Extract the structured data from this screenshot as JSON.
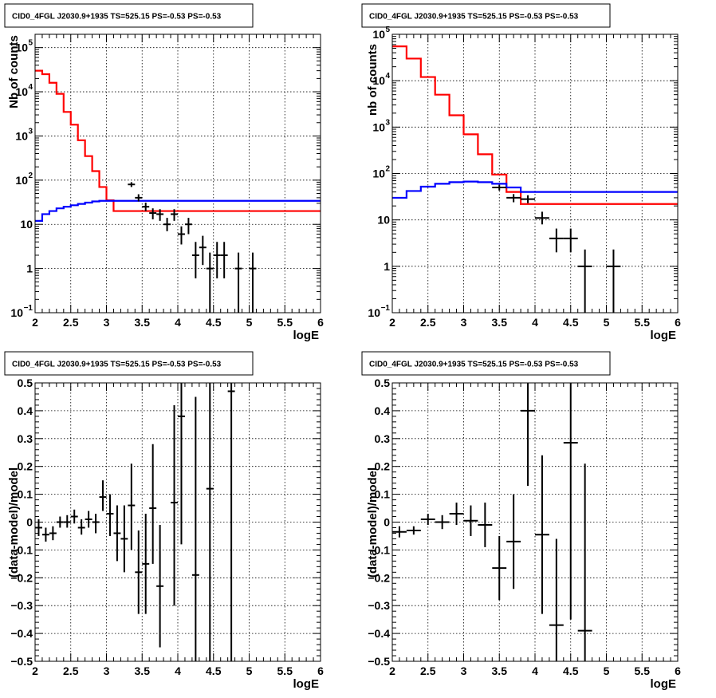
{
  "colors": {
    "data": "#000000",
    "total_model": "#ff0000",
    "background_model": "#0000ff",
    "grid": "#000000"
  },
  "chart_data": [
    {
      "id": "top-left",
      "type": "step",
      "title": "CID0_4FGL J2030.9+1935 TS=525.15 PS=-0.53 PS=-0.53",
      "xlabel": "logE",
      "ylabel": "Nb of counts",
      "xlim": [
        2,
        6
      ],
      "ylim": [
        0.1,
        200000
      ],
      "yscale": "log",
      "grid": true,
      "x_ticks": [
        "2",
        "2.5",
        "3",
        "3.5",
        "4",
        "4.5",
        "5",
        "5.5",
        "6"
      ],
      "y_ticks": [
        {
          "v": 0.1,
          "base": "10",
          "exp": "−1"
        },
        {
          "v": 1,
          "base": "1",
          "exp": ""
        },
        {
          "v": 10,
          "base": "10",
          "exp": ""
        },
        {
          "v": 100,
          "base": "10",
          "exp": "2"
        },
        {
          "v": 1000,
          "base": "10",
          "exp": "3"
        },
        {
          "v": 10000,
          "base": "10",
          "exp": "4"
        },
        {
          "v": 100000,
          "base": "10",
          "exp": "5"
        }
      ],
      "bin_edges": [
        2.0,
        2.1,
        2.2,
        2.3,
        2.4,
        2.5,
        2.6,
        2.7,
        2.8,
        2.9,
        3.0,
        3.1,
        3.2,
        3.3,
        3.4,
        3.5,
        3.6,
        3.7,
        3.8,
        3.9,
        4.0,
        4.1,
        4.2,
        4.3,
        4.4,
        4.5,
        4.6,
        4.7,
        4.8,
        4.9,
        5.0,
        5.1,
        5.2,
        5.3,
        5.4,
        5.5,
        5.6,
        5.7,
        5.8,
        5.9,
        6.0
      ],
      "series": [
        {
          "name": "model_total",
          "color": "#ff0000",
          "values": [
            30000,
            25000,
            16000,
            9000,
            3500,
            1800,
            800,
            350,
            160,
            70,
            35,
            20,
            20,
            20,
            20,
            20,
            20,
            20,
            20,
            20,
            20,
            20,
            20,
            20,
            20,
            20,
            20,
            20,
            20,
            20,
            20,
            20,
            20,
            20,
            20,
            20,
            20,
            20,
            20,
            20
          ]
        },
        {
          "name": "model_background",
          "color": "#0000ff",
          "values": [
            12,
            17,
            20,
            23,
            25,
            27,
            29,
            31,
            33,
            34,
            34,
            34,
            34,
            34,
            34,
            34,
            34,
            34,
            34,
            34,
            34,
            34,
            34,
            34,
            34,
            34,
            34,
            34,
            34,
            34,
            34,
            34,
            34,
            34,
            34,
            34,
            34,
            34,
            34,
            34
          ]
        }
      ],
      "points": [
        {
          "x": 3.35,
          "y": 80,
          "xerr": 0.05,
          "ylo": 70,
          "yhi": 90
        },
        {
          "x": 3.45,
          "y": 40,
          "xerr": 0.05,
          "ylo": 33,
          "yhi": 48
        },
        {
          "x": 3.55,
          "y": 25,
          "xerr": 0.05,
          "ylo": 20,
          "yhi": 31
        },
        {
          "x": 3.65,
          "y": 18,
          "xerr": 0.05,
          "ylo": 13,
          "yhi": 23
        },
        {
          "x": 3.75,
          "y": 17,
          "xerr": 0.05,
          "ylo": 12,
          "yhi": 22
        },
        {
          "x": 3.85,
          "y": 10,
          "xerr": 0.05,
          "ylo": 7,
          "yhi": 14
        },
        {
          "x": 3.95,
          "y": 17,
          "xerr": 0.05,
          "ylo": 12,
          "yhi": 22
        },
        {
          "x": 4.05,
          "y": 6,
          "xerr": 0.05,
          "ylo": 3.5,
          "yhi": 9
        },
        {
          "x": 4.15,
          "y": 10,
          "xerr": 0.05,
          "ylo": 6,
          "yhi": 14
        },
        {
          "x": 4.25,
          "y": 2,
          "xerr": 0.05,
          "ylo": 0.6,
          "yhi": 4
        },
        {
          "x": 4.35,
          "y": 3,
          "xerr": 0.05,
          "ylo": 1.2,
          "yhi": 5.5
        },
        {
          "x": 4.45,
          "y": 1,
          "xerr": 0.05,
          "ylo": 0.1,
          "yhi": 2.3
        },
        {
          "x": 4.55,
          "y": 2,
          "xerr": 0.05,
          "ylo": 0.6,
          "yhi": 4
        },
        {
          "x": 4.65,
          "y": 2,
          "xerr": 0.05,
          "ylo": 0.6,
          "yhi": 4
        },
        {
          "x": 4.85,
          "y": 1,
          "xerr": 0.05,
          "ylo": 0.1,
          "yhi": 2.3
        },
        {
          "x": 5.05,
          "y": 1,
          "xerr": 0.05,
          "ylo": 0.1,
          "yhi": 2.3
        }
      ]
    },
    {
      "id": "top-right",
      "type": "step",
      "title": "CID0_4FGL J2030.9+1935 TS=525.15 PS=-0.53 PS=-0.53",
      "xlabel": "logE",
      "ylabel": "nb of counts",
      "xlim": [
        2,
        6
      ],
      "ylim": [
        0.1,
        100000
      ],
      "yscale": "log",
      "grid": true,
      "x_ticks": [
        "2",
        "2.5",
        "3",
        "3.5",
        "4",
        "4.5",
        "5",
        "5.5",
        "6"
      ],
      "y_ticks": [
        {
          "v": 0.1,
          "base": "10",
          "exp": "−1"
        },
        {
          "v": 1,
          "base": "1",
          "exp": ""
        },
        {
          "v": 10,
          "base": "10",
          "exp": ""
        },
        {
          "v": 100,
          "base": "10",
          "exp": "2"
        },
        {
          "v": 1000,
          "base": "10",
          "exp": "3"
        },
        {
          "v": 10000,
          "base": "10",
          "exp": "4"
        },
        {
          "v": 100000,
          "base": "10",
          "exp": "5"
        }
      ],
      "bin_edges": [
        2.0,
        2.2,
        2.4,
        2.6,
        2.8,
        3.0,
        3.2,
        3.4,
        3.6,
        3.8,
        4.0,
        4.2,
        4.4,
        4.6,
        4.8,
        5.0,
        5.2,
        5.4,
        5.6,
        5.8,
        6.0
      ],
      "series": [
        {
          "name": "model_total",
          "color": "#ff0000",
          "values": [
            55000,
            30000,
            12000,
            5000,
            1800,
            700,
            260,
            95,
            40,
            22,
            22,
            22,
            22,
            22,
            22,
            22,
            22,
            22,
            22,
            22
          ]
        },
        {
          "name": "model_background",
          "color": "#0000ff",
          "values": [
            30,
            42,
            52,
            60,
            65,
            67,
            65,
            60,
            50,
            40,
            40,
            40,
            40,
            40,
            40,
            40,
            40,
            40,
            40,
            40
          ]
        }
      ],
      "points": [
        {
          "x": 3.5,
          "y": 50,
          "xerr": 0.1,
          "ylo": 43,
          "yhi": 57
        },
        {
          "x": 3.7,
          "y": 30,
          "xerr": 0.1,
          "ylo": 24,
          "yhi": 36
        },
        {
          "x": 3.9,
          "y": 28,
          "xerr": 0.1,
          "ylo": 23,
          "yhi": 34
        },
        {
          "x": 4.1,
          "y": 11,
          "xerr": 0.1,
          "ylo": 8,
          "yhi": 15
        },
        {
          "x": 4.3,
          "y": 4,
          "xerr": 0.1,
          "ylo": 2,
          "yhi": 6.5
        },
        {
          "x": 4.5,
          "y": 4,
          "xerr": 0.1,
          "ylo": 2,
          "yhi": 6.5
        },
        {
          "x": 4.7,
          "y": 1,
          "xerr": 0.1,
          "ylo": 0.1,
          "yhi": 2.3
        },
        {
          "x": 5.1,
          "y": 1,
          "xerr": 0.1,
          "ylo": 0.1,
          "yhi": 2.3
        }
      ]
    },
    {
      "id": "bottom-left",
      "type": "scatter",
      "title": "CID0_4FGL J2030.9+1935 TS=525.15 PS=-0.53 PS=-0.53",
      "xlabel": "logE",
      "ylabel": "(data-model)/model",
      "xlim": [
        2,
        6
      ],
      "ylim": [
        -0.5,
        0.5
      ],
      "yscale": "linear",
      "grid": true,
      "x_ticks": [
        "2",
        "2.5",
        "3",
        "3.5",
        "4",
        "4.5",
        "5",
        "5.5",
        "6"
      ],
      "y_ticks": [
        {
          "v": -0.5,
          "base": "−0.5",
          "exp": ""
        },
        {
          "v": -0.4,
          "base": "−0.4",
          "exp": ""
        },
        {
          "v": -0.3,
          "base": "−0.3",
          "exp": ""
        },
        {
          "v": -0.2,
          "base": "−0.2",
          "exp": ""
        },
        {
          "v": -0.1,
          "base": "−0.1",
          "exp": ""
        },
        {
          "v": 0,
          "base": "0",
          "exp": ""
        },
        {
          "v": 0.1,
          "base": "0.1",
          "exp": ""
        },
        {
          "v": 0.2,
          "base": "0.2",
          "exp": ""
        },
        {
          "v": 0.3,
          "base": "0.3",
          "exp": ""
        },
        {
          "v": 0.4,
          "base": "0.4",
          "exp": ""
        },
        {
          "v": 0.5,
          "base": "0.5",
          "exp": ""
        }
      ],
      "points": [
        {
          "x": 2.05,
          "y": -0.02,
          "xerr": 0.05,
          "ylo": -0.05,
          "yhi": 0.01
        },
        {
          "x": 2.15,
          "y": -0.045,
          "xerr": 0.05,
          "ylo": -0.07,
          "yhi": -0.02
        },
        {
          "x": 2.25,
          "y": -0.04,
          "xerr": 0.05,
          "ylo": -0.065,
          "yhi": -0.015
        },
        {
          "x": 2.35,
          "y": 0.0,
          "xerr": 0.05,
          "ylo": -0.02,
          "yhi": 0.02
        },
        {
          "x": 2.45,
          "y": 0.0,
          "xerr": 0.05,
          "ylo": -0.02,
          "yhi": 0.025
        },
        {
          "x": 2.55,
          "y": 0.02,
          "xerr": 0.05,
          "ylo": -0.005,
          "yhi": 0.045
        },
        {
          "x": 2.65,
          "y": -0.02,
          "xerr": 0.05,
          "ylo": -0.045,
          "yhi": 0.01
        },
        {
          "x": 2.75,
          "y": 0.01,
          "xerr": 0.05,
          "ylo": -0.02,
          "yhi": 0.04
        },
        {
          "x": 2.85,
          "y": 0.0,
          "xerr": 0.05,
          "ylo": -0.04,
          "yhi": 0.03
        },
        {
          "x": 2.95,
          "y": 0.09,
          "xerr": 0.05,
          "ylo": 0.04,
          "yhi": 0.15
        },
        {
          "x": 3.05,
          "y": 0.03,
          "xerr": 0.05,
          "ylo": -0.05,
          "yhi": 0.1
        },
        {
          "x": 3.15,
          "y": -0.04,
          "xerr": 0.05,
          "ylo": -0.14,
          "yhi": 0.06
        },
        {
          "x": 3.25,
          "y": -0.06,
          "xerr": 0.05,
          "ylo": -0.18,
          "yhi": 0.06
        },
        {
          "x": 3.35,
          "y": 0.06,
          "xerr": 0.05,
          "ylo": -0.1,
          "yhi": 0.21
        },
        {
          "x": 3.45,
          "y": -0.18,
          "xerr": 0.05,
          "ylo": -0.33,
          "yhi": -0.03
        },
        {
          "x": 3.55,
          "y": -0.15,
          "xerr": 0.05,
          "ylo": -0.33,
          "yhi": 0.03
        },
        {
          "x": 3.65,
          "y": 0.05,
          "xerr": 0.05,
          "ylo": -0.15,
          "yhi": 0.28
        },
        {
          "x": 3.75,
          "y": -0.23,
          "xerr": 0.05,
          "ylo": -0.45,
          "yhi": -0.01
        },
        {
          "x": 3.95,
          "y": 0.07,
          "xerr": 0.05,
          "ylo": -0.3,
          "yhi": 0.42
        },
        {
          "x": 4.05,
          "y": 0.38,
          "xerr": 0.05,
          "ylo": -0.08,
          "yhi": 0.5
        },
        {
          "x": 4.25,
          "y": -0.19,
          "xerr": 0.05,
          "ylo": -0.5,
          "yhi": 0.45
        },
        {
          "x": 4.45,
          "y": 0.12,
          "xerr": 0.05,
          "ylo": -0.5,
          "yhi": 0.5
        },
        {
          "x": 4.75,
          "y": 0.47,
          "xerr": 0.05,
          "ylo": -0.5,
          "yhi": 0.5
        }
      ]
    },
    {
      "id": "bottom-right",
      "type": "scatter",
      "title": "CID0_4FGL J2030.9+1935 TS=525.15 PS=-0.53 PS=-0.53",
      "xlabel": "logE",
      "ylabel": "(data-model)/model",
      "xlim": [
        2,
        6
      ],
      "ylim": [
        -0.5,
        0.5
      ],
      "yscale": "linear",
      "grid": true,
      "x_ticks": [
        "2",
        "2.5",
        "3",
        "3.5",
        "4",
        "4.5",
        "5",
        "5.5",
        "6"
      ],
      "y_ticks": [
        {
          "v": -0.5,
          "base": "−0.5",
          "exp": ""
        },
        {
          "v": -0.4,
          "base": "−0.4",
          "exp": ""
        },
        {
          "v": -0.3,
          "base": "−0.3",
          "exp": ""
        },
        {
          "v": -0.2,
          "base": "−0.2",
          "exp": ""
        },
        {
          "v": -0.1,
          "base": "−0.1",
          "exp": ""
        },
        {
          "v": 0,
          "base": "0",
          "exp": ""
        },
        {
          "v": 0.1,
          "base": "0.1",
          "exp": ""
        },
        {
          "v": 0.2,
          "base": "0.2",
          "exp": ""
        },
        {
          "v": 0.3,
          "base": "0.3",
          "exp": ""
        },
        {
          "v": 0.4,
          "base": "0.4",
          "exp": ""
        },
        {
          "v": 0.5,
          "base": "0.5",
          "exp": ""
        }
      ],
      "points": [
        {
          "x": 2.1,
          "y": -0.035,
          "xerr": 0.1,
          "ylo": -0.055,
          "yhi": -0.015
        },
        {
          "x": 2.3,
          "y": -0.03,
          "xerr": 0.1,
          "ylo": -0.045,
          "yhi": -0.015
        },
        {
          "x": 2.5,
          "y": 0.01,
          "xerr": 0.1,
          "ylo": -0.01,
          "yhi": 0.03
        },
        {
          "x": 2.7,
          "y": 0.0,
          "xerr": 0.1,
          "ylo": -0.025,
          "yhi": 0.025
        },
        {
          "x": 2.9,
          "y": 0.03,
          "xerr": 0.1,
          "ylo": -0.01,
          "yhi": 0.07
        },
        {
          "x": 3.1,
          "y": 0.005,
          "xerr": 0.1,
          "ylo": -0.05,
          "yhi": 0.06
        },
        {
          "x": 3.3,
          "y": -0.01,
          "xerr": 0.1,
          "ylo": -0.09,
          "yhi": 0.07
        },
        {
          "x": 3.5,
          "y": -0.165,
          "xerr": 0.1,
          "ylo": -0.28,
          "yhi": -0.05
        },
        {
          "x": 3.7,
          "y": -0.07,
          "xerr": 0.1,
          "ylo": -0.24,
          "yhi": 0.1
        },
        {
          "x": 3.9,
          "y": 0.4,
          "xerr": 0.1,
          "ylo": 0.13,
          "yhi": 0.5
        },
        {
          "x": 4.1,
          "y": -0.045,
          "xerr": 0.1,
          "ylo": -0.33,
          "yhi": 0.24
        },
        {
          "x": 4.3,
          "y": -0.37,
          "xerr": 0.1,
          "ylo": -0.5,
          "yhi": -0.06
        },
        {
          "x": 4.5,
          "y": 0.285,
          "xerr": 0.1,
          "ylo": -0.35,
          "yhi": 0.5
        },
        {
          "x": 4.7,
          "y": -0.39,
          "xerr": 0.1,
          "ylo": -0.5,
          "yhi": 0.21
        }
      ]
    }
  ]
}
